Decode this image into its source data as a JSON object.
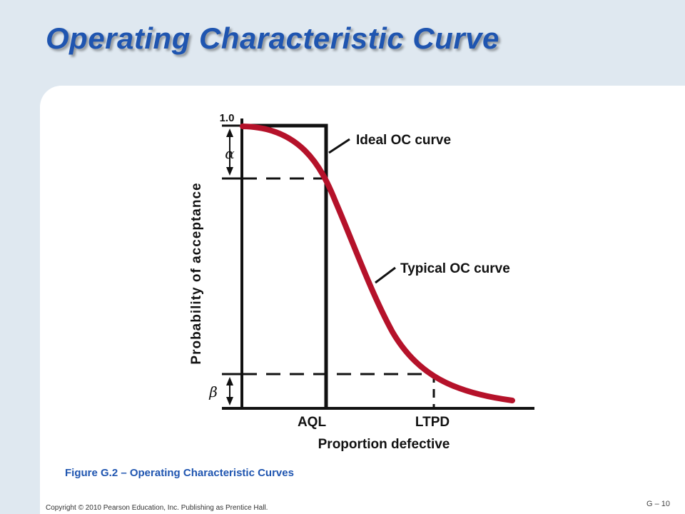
{
  "slide": {
    "title": "Operating Characteristic Curve",
    "caption": "Figure G.2 – Operating Characteristic Curves",
    "copyright": "Copyright © 2010 Pearson Education, Inc. Publishing as Prentice Hall.",
    "slide_number": "G – 10"
  },
  "diagram": {
    "y_axis_label": "Probability of acceptance",
    "y_tick_label": "1.0",
    "x_axis_label": "Proportion defective",
    "aql_label": "AQL",
    "ltpd_label": "LTPD",
    "alpha_symbol": "α",
    "beta_symbol": "β",
    "ideal_curve_label": "Ideal OC curve",
    "typical_curve_label": "Typical OC curve"
  },
  "colors": {
    "title": "#1f55b0",
    "typical_curve": "#b5122a",
    "axis": "#111111",
    "background": "#dfe8f0"
  }
}
